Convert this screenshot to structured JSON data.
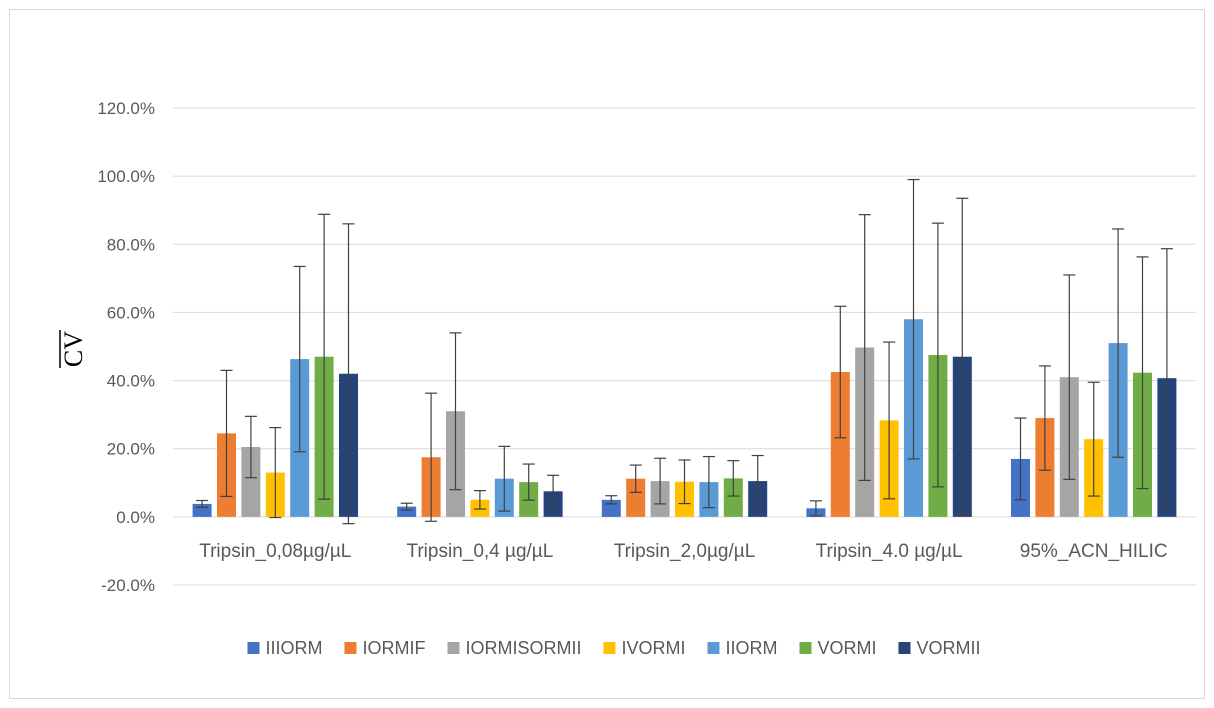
{
  "chart_data": {
    "type": "bar",
    "title": "",
    "xlabel": "",
    "ylabel": "CV",
    "ylabel_overline": true,
    "ylim": [
      -20,
      120
    ],
    "ytick_step": 20,
    "yticks": [
      "120.0%",
      "100.0%",
      "80.0%",
      "60.0%",
      "40.0%",
      "20.0%",
      "0.0%",
      "-20.0%"
    ],
    "grid": true,
    "legend_position": "bottom",
    "categories": [
      "Tripsin_0,08µg/µL",
      "Tripsin_0,4 µg/µL",
      "Tripsin_2,0µg/µL",
      "Tripsin_4.0 µg/µL",
      "95%_ACN_HILIC"
    ],
    "series": [
      {
        "name": "IIIORM",
        "color": "#4472c4",
        "values": [
          3.8,
          3.0,
          5.0,
          2.5,
          17.0
        ],
        "errors": [
          1.0,
          1.0,
          1.2,
          2.2,
          12.0
        ]
      },
      {
        "name": "IORMIF",
        "color": "#ed7d31",
        "values": [
          24.5,
          17.5,
          11.2,
          42.5,
          29.0
        ],
        "errors": [
          18.5,
          18.8,
          4.0,
          19.3,
          15.3
        ]
      },
      {
        "name": "IORMISORMII",
        "color": "#a5a5a5",
        "values": [
          20.5,
          31.0,
          10.5,
          49.7,
          41.0
        ],
        "errors": [
          9.0,
          23.0,
          6.7,
          39.0,
          30.0
        ]
      },
      {
        "name": "IVORMI",
        "color": "#ffc000",
        "values": [
          13.0,
          5.0,
          10.3,
          28.3,
          22.8
        ],
        "errors": [
          13.2,
          2.7,
          6.4,
          23.0,
          16.7
        ]
      },
      {
        "name": "IIORM",
        "color": "#5b9bd5",
        "values": [
          46.3,
          11.2,
          10.2,
          58.0,
          51.0
        ],
        "errors": [
          27.2,
          9.5,
          7.5,
          41.0,
          33.5
        ]
      },
      {
        "name": "VORMI",
        "color": "#70ad47",
        "values": [
          47.0,
          10.2,
          11.3,
          47.5,
          42.3
        ],
        "errors": [
          41.8,
          5.3,
          5.2,
          38.7,
          34.0
        ]
      },
      {
        "name": "VORMII",
        "color": "#264478",
        "values": [
          42.0,
          7.5,
          10.5,
          47.0,
          40.7
        ],
        "errors": [
          44.0,
          4.7,
          7.5,
          46.5,
          38.0
        ]
      }
    ]
  }
}
